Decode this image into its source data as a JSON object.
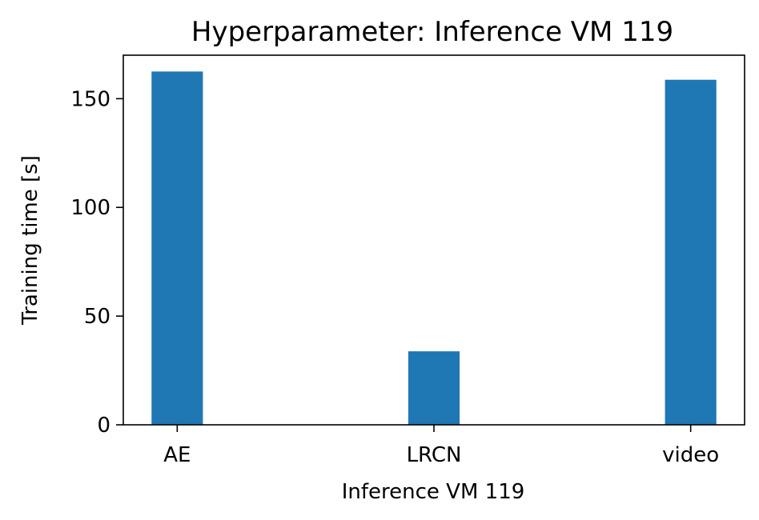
{
  "chart_data": {
    "type": "bar",
    "title": "Hyperparameter: Inference VM 119",
    "xlabel": "Inference VM 119",
    "ylabel": "Training time [s]",
    "categories": [
      "AE",
      "LRCN",
      "video"
    ],
    "values": [
      162.5,
      33.8,
      158.7
    ],
    "ylim": [
      0,
      170
    ],
    "yticks": [
      0,
      50,
      100,
      150
    ],
    "bar_color": "#1f77b4",
    "grid": false,
    "legend": "none"
  }
}
